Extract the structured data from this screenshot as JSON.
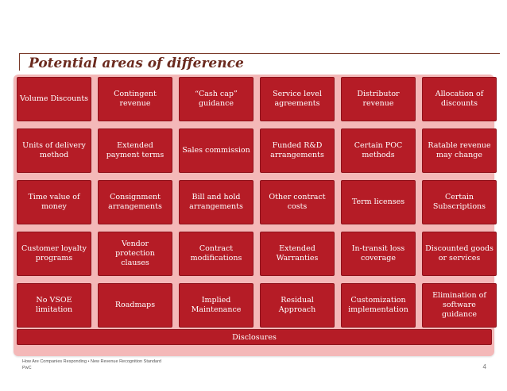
{
  "title": "Potential areas of difference",
  "cells": [
    [
      "Volume Discounts",
      "Contingent\nrevenue",
      "“Cash cap”\nguidance",
      "Service level\nagreements",
      "Distributor\nrevenue",
      "Allocation of\ndiscounts"
    ],
    [
      "Units of delivery\nmethod",
      "Extended\npayment terms",
      "Sales commission",
      "Funded R&D\narrangements",
      "Certain POC\nmethods",
      "Ratable revenue\nmay change"
    ],
    [
      "Time value of\nmoney",
      "Consignment\narrangements",
      "Bill and hold\narrangements",
      "Other contract\ncosts",
      "Term licenses",
      "Certain\nSubscriptions"
    ],
    [
      "Customer loyalty\nprograms",
      "Vendor protection\nclauses",
      "Contract\nmodifications",
      "Extended\nWarranties",
      "In-transit loss\ncoverage",
      "Discounted goods\nor services"
    ],
    [
      "No VSOE\nlimitation",
      "Roadmaps",
      "Implied\nMaintenance",
      "Residual\nApproach",
      "Customization\nimplementation",
      "Elimination of\nsoftware guidance"
    ]
  ],
  "disclosures": "Disclosures",
  "footer": {
    "line1": "How Are Companies Responding • New Revenue Recognition Standard",
    "line2": "PwC"
  },
  "page_number": "4",
  "colors": {
    "cell_bg": "#b51c26",
    "panel_bg": "#f4b8b8",
    "title": "#6b2a1e"
  }
}
